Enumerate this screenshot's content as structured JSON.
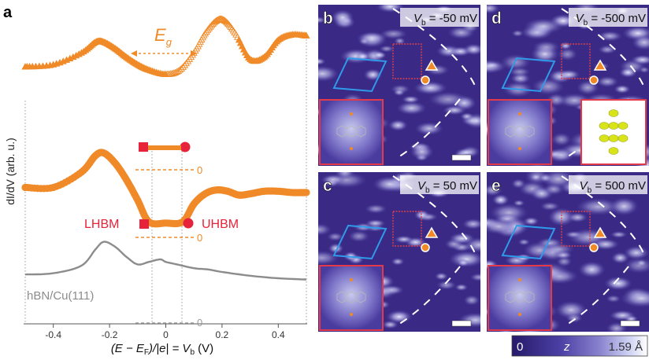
{
  "figure": {
    "panel_a": {
      "letter": "a",
      "eg_label": "E",
      "eg_sub": "g",
      "lhbm": "LHBM",
      "uhbm": "UHBM",
      "substrate": "hBN/Cu(111)",
      "zero": "0",
      "ylabel": "dI/dV (arb. u.)",
      "xlabel": "(E − E",
      "xlabel_sub": "F",
      "xlabel_mid": ")/|e| = V",
      "xlabel_sub2": "b",
      "xlabel_end": " (V)"
    },
    "stm_panels": [
      {
        "letter": "b",
        "vb_label": "V",
        "vb_sub": "b",
        "vb_value": " = -50 mV"
      },
      {
        "letter": "c",
        "vb_label": "V",
        "vb_sub": "b",
        "vb_value": " = 50 mV"
      },
      {
        "letter": "d",
        "vb_label": "V",
        "vb_sub": "b",
        "vb_value": " = -500 mV"
      },
      {
        "letter": "e",
        "vb_label": "V",
        "vb_sub": "b",
        "vb_value": " = 500 mV"
      }
    ],
    "colorbar": {
      "min": "0",
      "symbol": "z",
      "max": "1.59 Å"
    },
    "colors": {
      "orange": "#f08a28",
      "orange_light": "#f5b070",
      "red": "#e6233a",
      "gray": "#8c8c8c",
      "stm_dark": "#3a2a86",
      "stm_mid": "#6a5ec0",
      "stm_light": "#e8ecfb",
      "cell_blue": "#2e9bea",
      "inset_border": "#e23a4a"
    }
  },
  "chart_data": {
    "type": "line",
    "title": "",
    "xlabel": "(E − E_F)/|e| = V_b (V)",
    "ylabel": "dI/dV (arb. u.)",
    "xlim": [
      -0.5,
      0.5
    ],
    "xticks": [
      -0.4,
      -0.2,
      0.0,
      0.2,
      0.4
    ],
    "xtick_labels": [
      "-0.4",
      "-0.2",
      "0",
      "0.2",
      "0.4"
    ],
    "series": [
      {
        "style": "orange triangles (top)",
        "x": [
          -0.5,
          -0.4,
          -0.3,
          -0.25,
          -0.22,
          -0.18,
          -0.14,
          -0.1,
          -0.06,
          0.0,
          0.05,
          0.1,
          0.14,
          0.18,
          0.21,
          0.25,
          0.3,
          0.35,
          0.4,
          0.45,
          0.5
        ],
        "y": [
          0.55,
          0.57,
          0.68,
          0.78,
          0.78,
          0.72,
          0.64,
          0.57,
          0.52,
          0.48,
          0.52,
          0.68,
          0.86,
          0.98,
          0.98,
          0.85,
          0.62,
          0.64,
          0.8,
          0.85,
          0.84
        ]
      },
      {
        "style": "orange circles (middle)",
        "x": [
          -0.5,
          -0.4,
          -0.3,
          -0.25,
          -0.22,
          -0.18,
          -0.14,
          -0.1,
          -0.06,
          0.0,
          0.06,
          0.1,
          0.14,
          0.18,
          0.22,
          0.26,
          0.3,
          0.35,
          0.4,
          0.45,
          0.5
        ],
        "y": [
          0.38,
          0.38,
          0.5,
          0.63,
          0.65,
          0.57,
          0.44,
          0.28,
          0.11,
          0.1,
          0.11,
          0.25,
          0.33,
          0.36,
          0.35,
          0.32,
          0.33,
          0.35,
          0.35,
          0.34,
          0.34
        ]
      },
      {
        "style": "gray line (hBN/Cu(111))",
        "x": [
          -0.5,
          -0.4,
          -0.3,
          -0.25,
          -0.22,
          -0.18,
          -0.14,
          -0.1,
          -0.06,
          -0.02,
          0.0,
          0.04,
          0.1,
          0.15,
          0.2,
          0.3,
          0.4,
          0.5
        ],
        "y": [
          0.38,
          0.39,
          0.45,
          0.58,
          0.64,
          0.6,
          0.52,
          0.46,
          0.48,
          0.5,
          0.48,
          0.46,
          0.43,
          0.42,
          0.4,
          0.37,
          0.35,
          0.34
        ]
      }
    ],
    "markers": {
      "lhbm_x": -0.07,
      "uhbm_x": 0.07
    },
    "annotations": [
      "E_g",
      "LHBM",
      "UHBM",
      "hBN/Cu(111)",
      "0",
      "0",
      "0"
    ]
  }
}
